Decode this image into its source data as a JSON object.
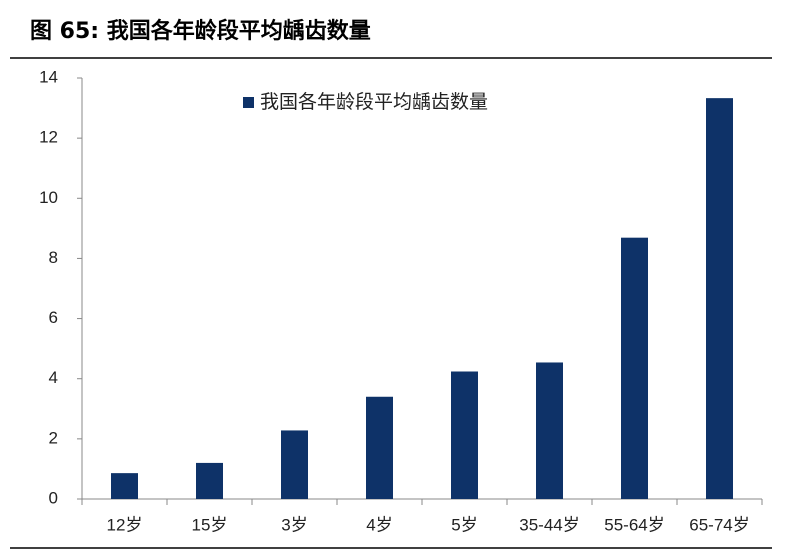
{
  "chart_data": {
    "type": "bar",
    "title": "图 65: 我国各年龄段平均龋齿数量",
    "categories": [
      "12岁",
      "15岁",
      "3岁",
      "4岁",
      "5岁",
      "35-44岁",
      "55-64岁",
      "65-74岁"
    ],
    "series": [
      {
        "name": "我国各年龄段平均龋齿数量",
        "color": "#0e3268",
        "values": [
          0.86,
          1.2,
          2.28,
          3.4,
          4.24,
          4.54,
          8.69,
          13.33
        ]
      }
    ],
    "ylim": [
      0,
      14
    ],
    "yticks": [
      0,
      2,
      4,
      6,
      8,
      10,
      12,
      14
    ],
    "grid": false,
    "legend": "top"
  }
}
